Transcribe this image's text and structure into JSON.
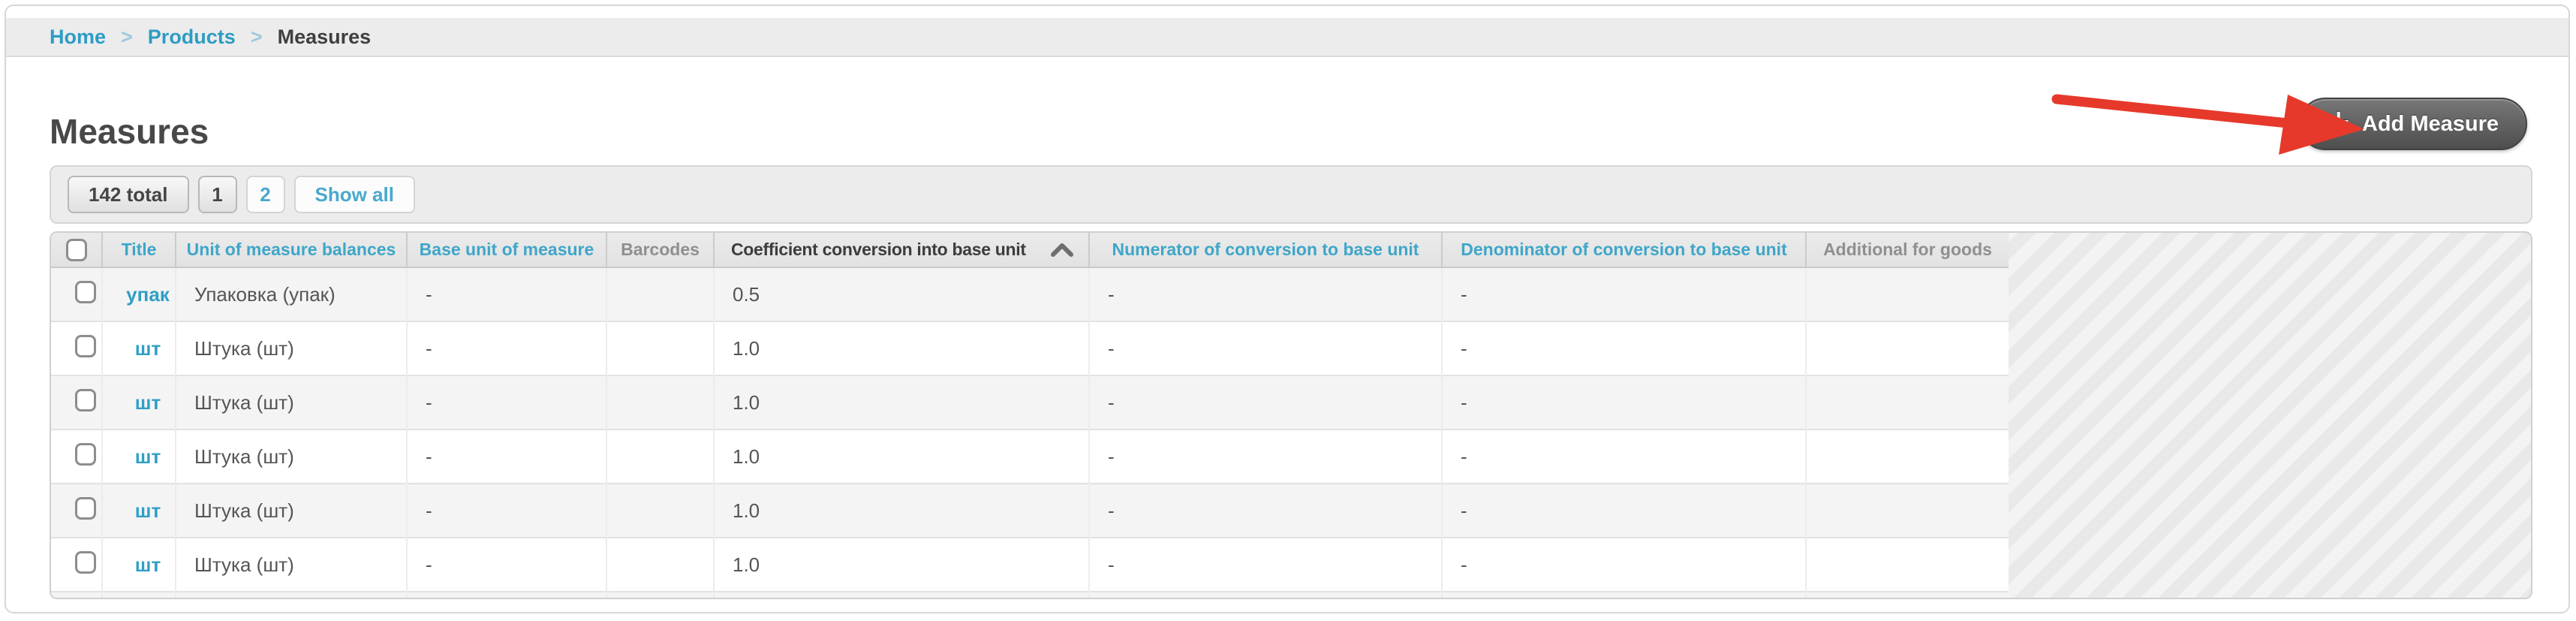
{
  "breadcrumb": {
    "separator": ">",
    "items": [
      {
        "label": "Home",
        "link": true
      },
      {
        "label": "Products",
        "link": true
      },
      {
        "label": "Measures",
        "link": false
      }
    ]
  },
  "page": {
    "title": "Measures"
  },
  "toolbar": {
    "add_button": {
      "label": "Add Measure",
      "icon": "plus",
      "bg_color": "#5a5a5a",
      "text_color": "#ffffff"
    }
  },
  "annotation": {
    "type": "arrow",
    "color": "#e6392b",
    "points_to": "add-measure-button"
  },
  "pagination": {
    "total_label": "142 total",
    "current_page": "1",
    "pages": [
      "1",
      "2"
    ],
    "show_all_label": "Show all"
  },
  "table": {
    "columns": [
      {
        "key": "checkbox",
        "label": "",
        "sortable": false,
        "type": "checkbox"
      },
      {
        "key": "title",
        "label": "Title",
        "sortable": true
      },
      {
        "key": "unit",
        "label": "Unit of measure balances",
        "sortable": true
      },
      {
        "key": "base",
        "label": "Base unit of measure",
        "sortable": true
      },
      {
        "key": "barcodes",
        "label": "Barcodes",
        "sortable": false
      },
      {
        "key": "coef",
        "label": "Coefficient conversion into base unit",
        "sortable": true,
        "sorted": "asc",
        "sort_icon": "chevron-up"
      },
      {
        "key": "num",
        "label": "Numerator of conversion to base unit",
        "sortable": true
      },
      {
        "key": "den",
        "label": "Denominator of conversion to base unit",
        "sortable": true
      },
      {
        "key": "add",
        "label": "Additional for goods",
        "sortable": false
      }
    ],
    "rows": [
      {
        "title": "упак",
        "unit": "Упаковка (упак)",
        "base": "-",
        "barcodes": "",
        "coef": "0.5",
        "num": "-",
        "den": "-",
        "add": ""
      },
      {
        "title": "шт",
        "unit": "Штука (шт)",
        "base": "-",
        "barcodes": "",
        "coef": "1.0",
        "num": "-",
        "den": "-",
        "add": ""
      },
      {
        "title": "шт",
        "unit": "Штука (шт)",
        "base": "-",
        "barcodes": "",
        "coef": "1.0",
        "num": "-",
        "den": "-",
        "add": ""
      },
      {
        "title": "шт",
        "unit": "Штука (шт)",
        "base": "-",
        "barcodes": "",
        "coef": "1.0",
        "num": "-",
        "den": "-",
        "add": ""
      },
      {
        "title": "шт",
        "unit": "Штука (шт)",
        "base": "-",
        "barcodes": "",
        "coef": "1.0",
        "num": "-",
        "den": "-",
        "add": ""
      },
      {
        "title": "шт",
        "unit": "Штука (шт)",
        "base": "-",
        "barcodes": "",
        "coef": "1.0",
        "num": "-",
        "den": "-",
        "add": ""
      },
      {
        "partial": true,
        "title": "",
        "unit": "",
        "base": "",
        "barcodes": "",
        "coef": "",
        "num": "",
        "den": "",
        "add": ""
      }
    ]
  },
  "colors": {
    "link_blue": "#2f9fc6",
    "arrow_red": "#e6392b",
    "header_gray_text": "#8f8f8f",
    "row_stripe": "#f4f4f4",
    "bar_background": "#ececec"
  }
}
